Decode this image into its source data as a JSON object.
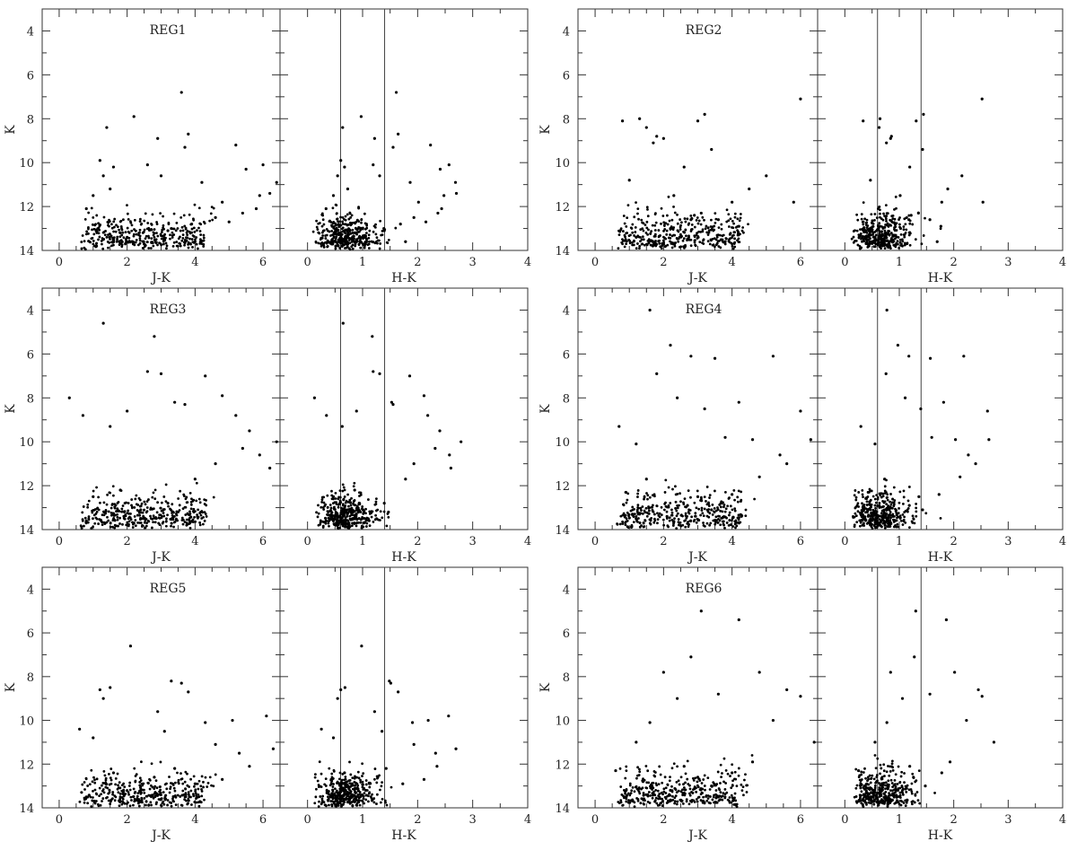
{
  "figure": {
    "type": "scatter",
    "yaxis": {
      "label": "K",
      "range": [
        3,
        14
      ],
      "inverted": true,
      "ticks": [
        4,
        6,
        8,
        10,
        12,
        14
      ]
    },
    "left_xaxis": {
      "label": "J-K",
      "range": [
        -0.5,
        6.5
      ],
      "ticks": [
        0,
        2,
        4,
        6
      ]
    },
    "right_xaxis": {
      "label": "H-K",
      "range": [
        -0.5,
        4
      ],
      "ticks": [
        0,
        1,
        2,
        3,
        4
      ]
    },
    "vertical_lines_hk": [
      0.6,
      1.4
    ],
    "regions": [
      "REG1",
      "REG2",
      "REG3",
      "REG4",
      "REG5",
      "REG6"
    ]
  },
  "chart_data": [
    {
      "region": "REG1",
      "type": "scatter",
      "xlabel": "J-K",
      "ylabel": "K",
      "xlim": [
        -0.5,
        6.5
      ],
      "ylim": [
        14,
        3
      ],
      "x": [
        0.8,
        1.0,
        1.2,
        1.3,
        1.4,
        1.5,
        1.6,
        2.2,
        2.6,
        2.9,
        3.0,
        3.6,
        3.7,
        3.8,
        4.2,
        4.8,
        5.2,
        5.5,
        5.8,
        6.0,
        6.2,
        6.4,
        1.3,
        1.8,
        2.5,
        3.2,
        4.0,
        4.6,
        5.0,
        5.4,
        5.9,
        1.1,
        2.0,
        3.3,
        3.9
      ],
      "y": [
        12.1,
        11.5,
        9.9,
        10.6,
        8.4,
        11.2,
        10.2,
        7.9,
        10.1,
        8.9,
        10.6,
        6.8,
        9.3,
        8.7,
        10.9,
        11.8,
        9.2,
        10.3,
        12.1,
        10.1,
        11.4,
        10.9,
        13.5,
        13.2,
        13.7,
        13.1,
        13.6,
        12.5,
        12.7,
        12.3,
        11.5,
        13.8,
        13.4,
        13.0,
        12.8
      ]
    },
    {
      "region": "REG2",
      "type": "scatter",
      "xlabel": "J-K",
      "ylabel": "K",
      "xlim": [
        -0.5,
        6.5
      ],
      "ylim": [
        14,
        3
      ],
      "x": [
        0.8,
        1.0,
        1.3,
        1.5,
        1.7,
        1.8,
        2.0,
        2.3,
        2.6,
        2.9,
        3.0,
        3.2,
        3.4,
        3.6,
        4.0,
        4.5,
        5.0,
        5.8,
        6.0,
        1.2,
        2.2,
        2.8,
        3.1,
        3.8,
        4.2
      ],
      "y": [
        8.1,
        10.8,
        8.0,
        8.4,
        9.1,
        8.8,
        8.9,
        11.5,
        10.2,
        12.4,
        8.1,
        7.8,
        9.4,
        12.6,
        11.8,
        11.2,
        10.6,
        11.8,
        7.1,
        13.4,
        13.0,
        12.6,
        12.3,
        13.6,
        12.9
      ]
    },
    {
      "region": "REG3",
      "type": "scatter",
      "xlabel": "J-K",
      "ylabel": "K",
      "xlim": [
        -0.5,
        6.5
      ],
      "ylim": [
        14,
        3
      ],
      "x": [
        0.3,
        0.7,
        1.3,
        1.5,
        2.0,
        2.6,
        2.8,
        3.0,
        3.4,
        3.7,
        4.3,
        4.8,
        5.2,
        5.6,
        5.9,
        6.2,
        1.0,
        1.8,
        2.4,
        3.2,
        4.0,
        4.6,
        5.4,
        6.4,
        0.8,
        1.6,
        2.2,
        3.5
      ],
      "y": [
        8.0,
        8.8,
        4.6,
        9.3,
        8.6,
        6.8,
        5.2,
        6.9,
        8.2,
        8.3,
        7.0,
        7.9,
        8.8,
        9.5,
        10.6,
        11.2,
        12.5,
        12.2,
        13.1,
        12.8,
        11.7,
        11.0,
        10.3,
        10.0,
        13.6,
        13.3,
        13.7,
        13.2
      ]
    },
    {
      "region": "REG4",
      "type": "scatter",
      "xlabel": "J-K",
      "ylabel": "K",
      "xlim": [
        -0.5,
        6.5
      ],
      "ylim": [
        14,
        3
      ],
      "x": [
        0.7,
        1.2,
        1.6,
        1.8,
        2.2,
        2.4,
        2.8,
        3.2,
        3.5,
        3.8,
        4.2,
        4.6,
        5.2,
        5.6,
        6.0,
        6.3,
        0.9,
        1.5,
        2.1,
        2.7,
        3.0,
        3.4,
        4.0,
        4.8,
        5.4
      ],
      "y": [
        9.3,
        10.1,
        4.0,
        6.9,
        5.6,
        8.0,
        6.1,
        8.5,
        6.2,
        9.8,
        8.2,
        9.9,
        6.1,
        11.0,
        8.6,
        9.9,
        12.3,
        11.7,
        13.4,
        12.9,
        12.5,
        13.1,
        12.4,
        11.6,
        10.6
      ]
    },
    {
      "region": "REG5",
      "type": "scatter",
      "xlabel": "J-K",
      "ylabel": "K",
      "xlim": [
        -0.5,
        6.5
      ],
      "ylim": [
        14,
        3
      ],
      "x": [
        0.6,
        1.0,
        1.2,
        1.3,
        1.5,
        2.1,
        2.9,
        3.1,
        3.3,
        3.6,
        3.8,
        4.3,
        4.6,
        5.1,
        5.3,
        6.1,
        6.3,
        0.8,
        1.6,
        2.4,
        2.8,
        3.4,
        4.0,
        4.8,
        5.6
      ],
      "y": [
        10.4,
        10.8,
        8.6,
        9.0,
        8.5,
        6.6,
        9.6,
        10.5,
        8.2,
        8.3,
        8.7,
        10.1,
        11.1,
        10.0,
        11.5,
        9.8,
        11.3,
        13.5,
        12.4,
        13.2,
        12.6,
        12.2,
        12.9,
        12.7,
        12.1
      ]
    },
    {
      "region": "REG6",
      "type": "scatter",
      "xlabel": "J-K",
      "ylabel": "K",
      "xlim": [
        -0.5,
        6.5
      ],
      "ylim": [
        14,
        3
      ],
      "x": [
        0.6,
        1.2,
        1.6,
        2.0,
        2.4,
        2.8,
        3.1,
        3.6,
        4.2,
        4.8,
        5.2,
        5.6,
        6.0,
        6.4,
        0.9,
        1.4,
        2.2,
        2.6,
        3.0,
        3.4,
        4.0,
        4.6
      ],
      "y": [
        12.3,
        11.0,
        10.1,
        7.8,
        9.0,
        7.1,
        5.0,
        8.8,
        5.4,
        7.8,
        10.0,
        8.6,
        8.9,
        11.0,
        13.5,
        12.8,
        13.2,
        12.1,
        12.6,
        13.0,
        12.4,
        11.9
      ]
    }
  ]
}
